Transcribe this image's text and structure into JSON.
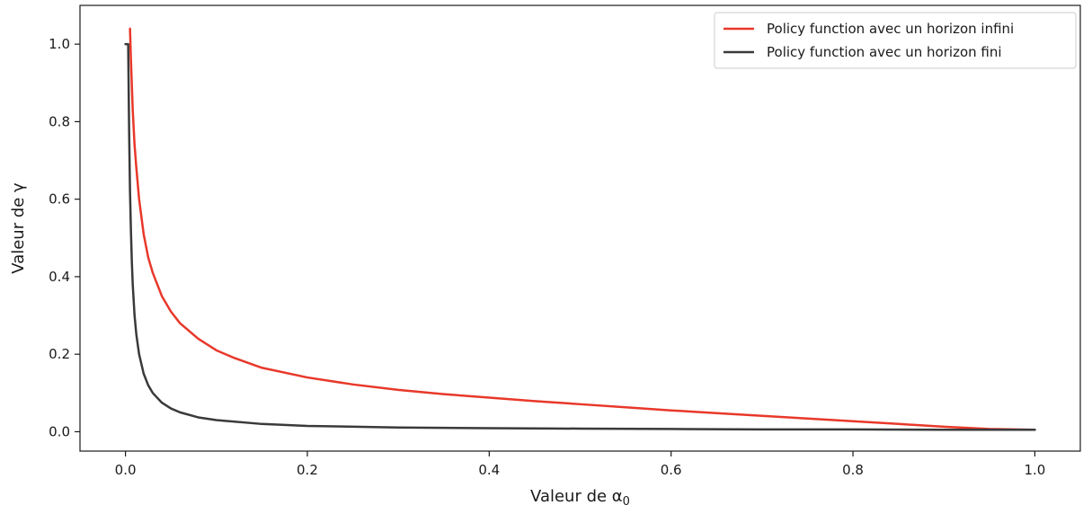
{
  "chart_data": {
    "type": "line",
    "title": "",
    "xlabel": "Valeur de α",
    "xlabel_subscript": "0",
    "ylabel": "Valeur de γ",
    "xlim": [
      -0.05,
      1.05
    ],
    "ylim": [
      -0.05,
      1.1
    ],
    "xticks": [
      0.0,
      0.2,
      0.4,
      0.6,
      0.8,
      1.0
    ],
    "xtick_labels": [
      "0.0",
      "0.2",
      "0.4",
      "0.6",
      "0.8",
      "1.0"
    ],
    "yticks": [
      0.0,
      0.2,
      0.4,
      0.6,
      0.8,
      1.0
    ],
    "ytick_labels": [
      "0.0",
      "0.2",
      "0.4",
      "0.6",
      "0.8",
      "1.0"
    ],
    "grid": false,
    "legend_position": "top-right",
    "series": [
      {
        "name": "Policy function avec un horizon infini",
        "color": "#e8382a",
        "x": [
          0.005,
          0.006,
          0.008,
          0.01,
          0.012,
          0.015,
          0.02,
          0.025,
          0.03,
          0.04,
          0.05,
          0.06,
          0.07,
          0.08,
          0.1,
          0.12,
          0.15,
          0.2,
          0.25,
          0.3,
          0.35,
          0.4,
          0.45,
          0.5,
          0.55,
          0.6,
          0.65,
          0.7,
          0.75,
          0.8,
          0.85,
          0.9,
          0.95,
          1.0
        ],
        "y": [
          1.04,
          0.96,
          0.83,
          0.74,
          0.68,
          0.6,
          0.51,
          0.45,
          0.41,
          0.35,
          0.31,
          0.28,
          0.26,
          0.24,
          0.21,
          0.19,
          0.165,
          0.14,
          0.122,
          0.108,
          0.097,
          0.088,
          0.079,
          0.071,
          0.063,
          0.055,
          0.048,
          0.041,
          0.034,
          0.027,
          0.02,
          0.013,
          0.007,
          0.005
        ]
      },
      {
        "name": "Policy function avec un horizon fini",
        "color": "#3a3a3a",
        "x": [
          0.0,
          0.003,
          0.004,
          0.005,
          0.006,
          0.007,
          0.008,
          0.01,
          0.012,
          0.015,
          0.02,
          0.025,
          0.03,
          0.04,
          0.05,
          0.06,
          0.08,
          0.1,
          0.15,
          0.2,
          0.3,
          0.4,
          0.5,
          0.6,
          0.7,
          0.8,
          0.9,
          1.0
        ],
        "y": [
          1.0,
          1.0,
          0.78,
          0.62,
          0.52,
          0.44,
          0.38,
          0.3,
          0.25,
          0.2,
          0.15,
          0.12,
          0.1,
          0.075,
          0.06,
          0.05,
          0.037,
          0.03,
          0.02,
          0.015,
          0.011,
          0.009,
          0.008,
          0.007,
          0.006,
          0.006,
          0.005,
          0.005
        ]
      }
    ]
  }
}
